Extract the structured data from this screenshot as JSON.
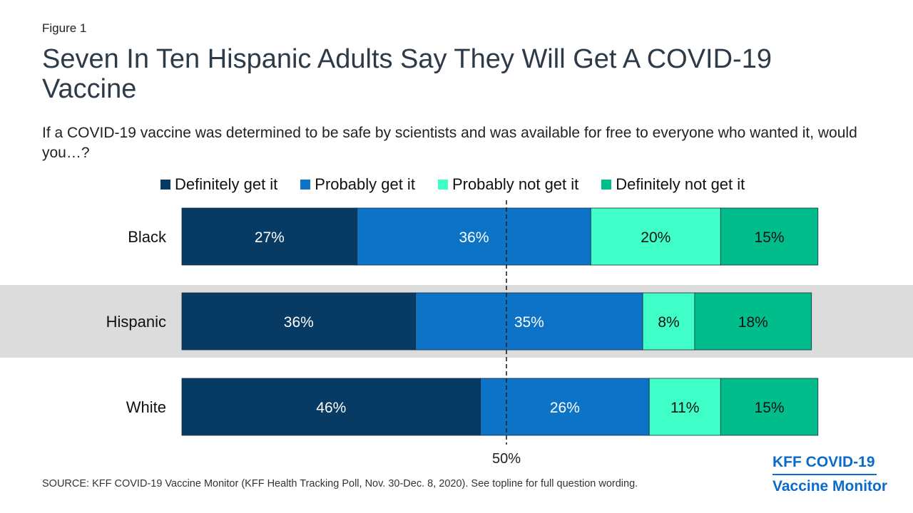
{
  "figure_label": "Figure 1",
  "title": "Seven In Ten Hispanic Adults Say They Will Get  A COVID-19 Vaccine",
  "subtitle": "If a COVID-19 vaccine was determined to be safe by scientists and was available for free to everyone who wanted it, would you…?",
  "source": "SOURCE: KFF COVID-19 Vaccine Monitor (KFF Health Tracking Poll, Nov. 30-Dec. 8, 2020). See topline for full question wording.",
  "brand": {
    "line1": "KFF COVID-19",
    "line2": "Vaccine Monitor",
    "color": "#0b6bc8"
  },
  "chart_data": {
    "type": "bar",
    "orientation": "horizontal",
    "stacked": true,
    "categories": [
      "Black",
      "Hispanic",
      "White"
    ],
    "highlighted_category": "Hispanic",
    "highlight_color": "#dcdcdc",
    "series": [
      {
        "name": "Definitely get it",
        "color": "#073b63",
        "values": [
          27,
          36,
          46
        ]
      },
      {
        "name": "Probably get it",
        "color": "#0d73c7",
        "values": [
          36,
          35,
          26
        ]
      },
      {
        "name": "Probably not get it",
        "color": "#3ffec8",
        "values": [
          20,
          8,
          11
        ]
      },
      {
        "name": "Definitely not get it",
        "color": "#00bd8b",
        "values": [
          15,
          18,
          15
        ]
      }
    ],
    "value_suffix": "%",
    "reference_line": {
      "value": 50,
      "label": "50%"
    },
    "xlim": [
      0,
      100
    ],
    "legend_position": "top",
    "grid": false
  }
}
